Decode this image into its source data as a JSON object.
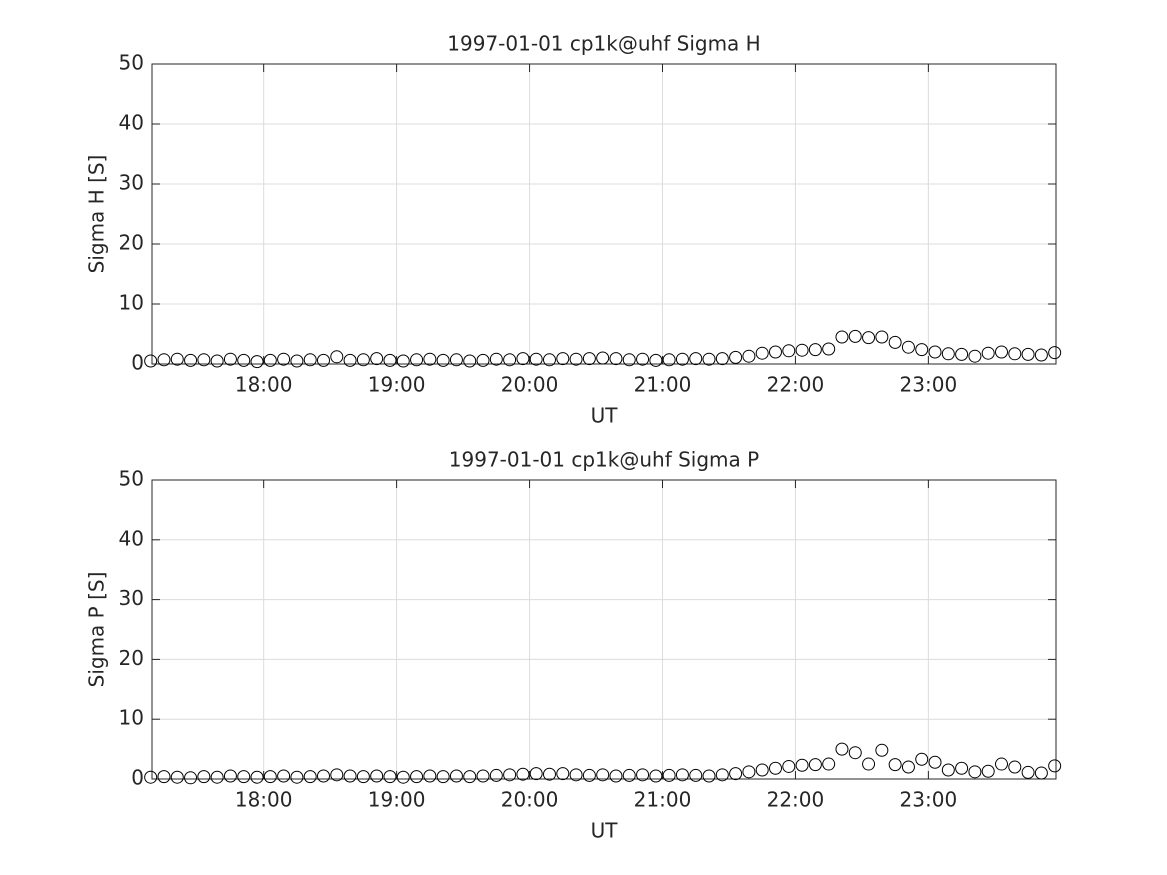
{
  "chart_data": [
    {
      "type": "scatter",
      "title": "1997-01-01  cp1k@uhf Sigma H",
      "xlabel": "UT",
      "ylabel": "Sigma H [S]",
      "color": "#000000",
      "grid": true,
      "xlim": [
        17.16,
        23.96
      ],
      "xticks": [
        {
          "value": 18,
          "label": "18:00"
        },
        {
          "value": 19,
          "label": "19:00"
        },
        {
          "value": 20,
          "label": "20:00"
        },
        {
          "value": 21,
          "label": "21:00"
        },
        {
          "value": 22,
          "label": "22:00"
        },
        {
          "value": 23,
          "label": "23:00"
        }
      ],
      "ylim": [
        0,
        50
      ],
      "yticks": [
        0,
        10,
        20,
        30,
        40,
        50
      ],
      "x": [
        17.15,
        17.25,
        17.35,
        17.45,
        17.55,
        17.65,
        17.75,
        17.85,
        17.95,
        18.05,
        18.15,
        18.25,
        18.35,
        18.45,
        18.55,
        18.65,
        18.75,
        18.85,
        18.95,
        19.05,
        19.15,
        19.25,
        19.35,
        19.45,
        19.55,
        19.65,
        19.75,
        19.85,
        19.95,
        20.05,
        20.15,
        20.25,
        20.35,
        20.45,
        20.55,
        20.65,
        20.75,
        20.85,
        20.95,
        21.05,
        21.15,
        21.25,
        21.35,
        21.45,
        21.55,
        21.65,
        21.75,
        21.85,
        21.95,
        22.05,
        22.15,
        22.25,
        22.35,
        22.45,
        22.55,
        22.65,
        22.75,
        22.85,
        22.95,
        23.05,
        23.15,
        23.25,
        23.35,
        23.45,
        23.55,
        23.65,
        23.75,
        23.85,
        23.95
      ],
      "values": [
        0.5,
        0.7,
        0.8,
        0.6,
        0.7,
        0.5,
        0.8,
        0.6,
        0.4,
        0.6,
        0.8,
        0.5,
        0.7,
        0.6,
        1.2,
        0.6,
        0.7,
        0.9,
        0.6,
        0.5,
        0.7,
        0.8,
        0.6,
        0.7,
        0.5,
        0.6,
        0.8,
        0.7,
        0.9,
        0.8,
        0.7,
        0.9,
        0.8,
        0.9,
        1.0,
        0.9,
        0.7,
        0.8,
        0.6,
        0.7,
        0.8,
        0.9,
        0.8,
        0.9,
        1.1,
        1.3,
        1.8,
        2.0,
        2.2,
        2.3,
        2.4,
        2.5,
        4.5,
        4.6,
        4.4,
        4.5,
        3.6,
        2.8,
        2.4,
        2.0,
        1.7,
        1.6,
        1.3,
        1.8,
        2.0,
        1.7,
        1.6,
        1.5,
        1.9
      ]
    },
    {
      "type": "scatter",
      "title": "1997-01-01  cp1k@uhf Sigma P",
      "xlabel": "UT",
      "ylabel": "Sigma P [S]",
      "color": "#000000",
      "grid": true,
      "xlim": [
        17.16,
        23.96
      ],
      "xticks": [
        {
          "value": 18,
          "label": "18:00"
        },
        {
          "value": 19,
          "label": "19:00"
        },
        {
          "value": 20,
          "label": "20:00"
        },
        {
          "value": 21,
          "label": "21:00"
        },
        {
          "value": 22,
          "label": "22:00"
        },
        {
          "value": 23,
          "label": "23:00"
        }
      ],
      "ylim": [
        0,
        50
      ],
      "yticks": [
        0,
        10,
        20,
        30,
        40,
        50
      ],
      "x": [
        17.15,
        17.25,
        17.35,
        17.45,
        17.55,
        17.65,
        17.75,
        17.85,
        17.95,
        18.05,
        18.15,
        18.25,
        18.35,
        18.45,
        18.55,
        18.65,
        18.75,
        18.85,
        18.95,
        19.05,
        19.15,
        19.25,
        19.35,
        19.45,
        19.55,
        19.65,
        19.75,
        19.85,
        19.95,
        20.05,
        20.15,
        20.25,
        20.35,
        20.45,
        20.55,
        20.65,
        20.75,
        20.85,
        20.95,
        21.05,
        21.15,
        21.25,
        21.35,
        21.45,
        21.55,
        21.65,
        21.75,
        21.85,
        21.95,
        22.05,
        22.15,
        22.25,
        22.35,
        22.45,
        22.55,
        22.65,
        22.75,
        22.85,
        22.95,
        23.05,
        23.15,
        23.25,
        23.35,
        23.45,
        23.55,
        23.65,
        23.75,
        23.85,
        23.95
      ],
      "values": [
        0.3,
        0.4,
        0.3,
        0.2,
        0.4,
        0.3,
        0.5,
        0.4,
        0.3,
        0.4,
        0.5,
        0.3,
        0.4,
        0.5,
        0.7,
        0.5,
        0.4,
        0.5,
        0.4,
        0.3,
        0.4,
        0.5,
        0.4,
        0.5,
        0.4,
        0.5,
        0.6,
        0.7,
        0.8,
        0.9,
        0.8,
        0.9,
        0.7,
        0.6,
        0.7,
        0.5,
        0.6,
        0.7,
        0.5,
        0.6,
        0.7,
        0.6,
        0.5,
        0.7,
        0.9,
        1.2,
        1.5,
        1.8,
        2.1,
        2.3,
        2.4,
        2.5,
        5.0,
        4.4,
        2.5,
        4.8,
        2.4,
        2.0,
        3.3,
        2.8,
        1.5,
        1.8,
        1.2,
        1.3,
        2.5,
        2.0,
        1.1,
        1.0,
        2.2
      ]
    }
  ]
}
